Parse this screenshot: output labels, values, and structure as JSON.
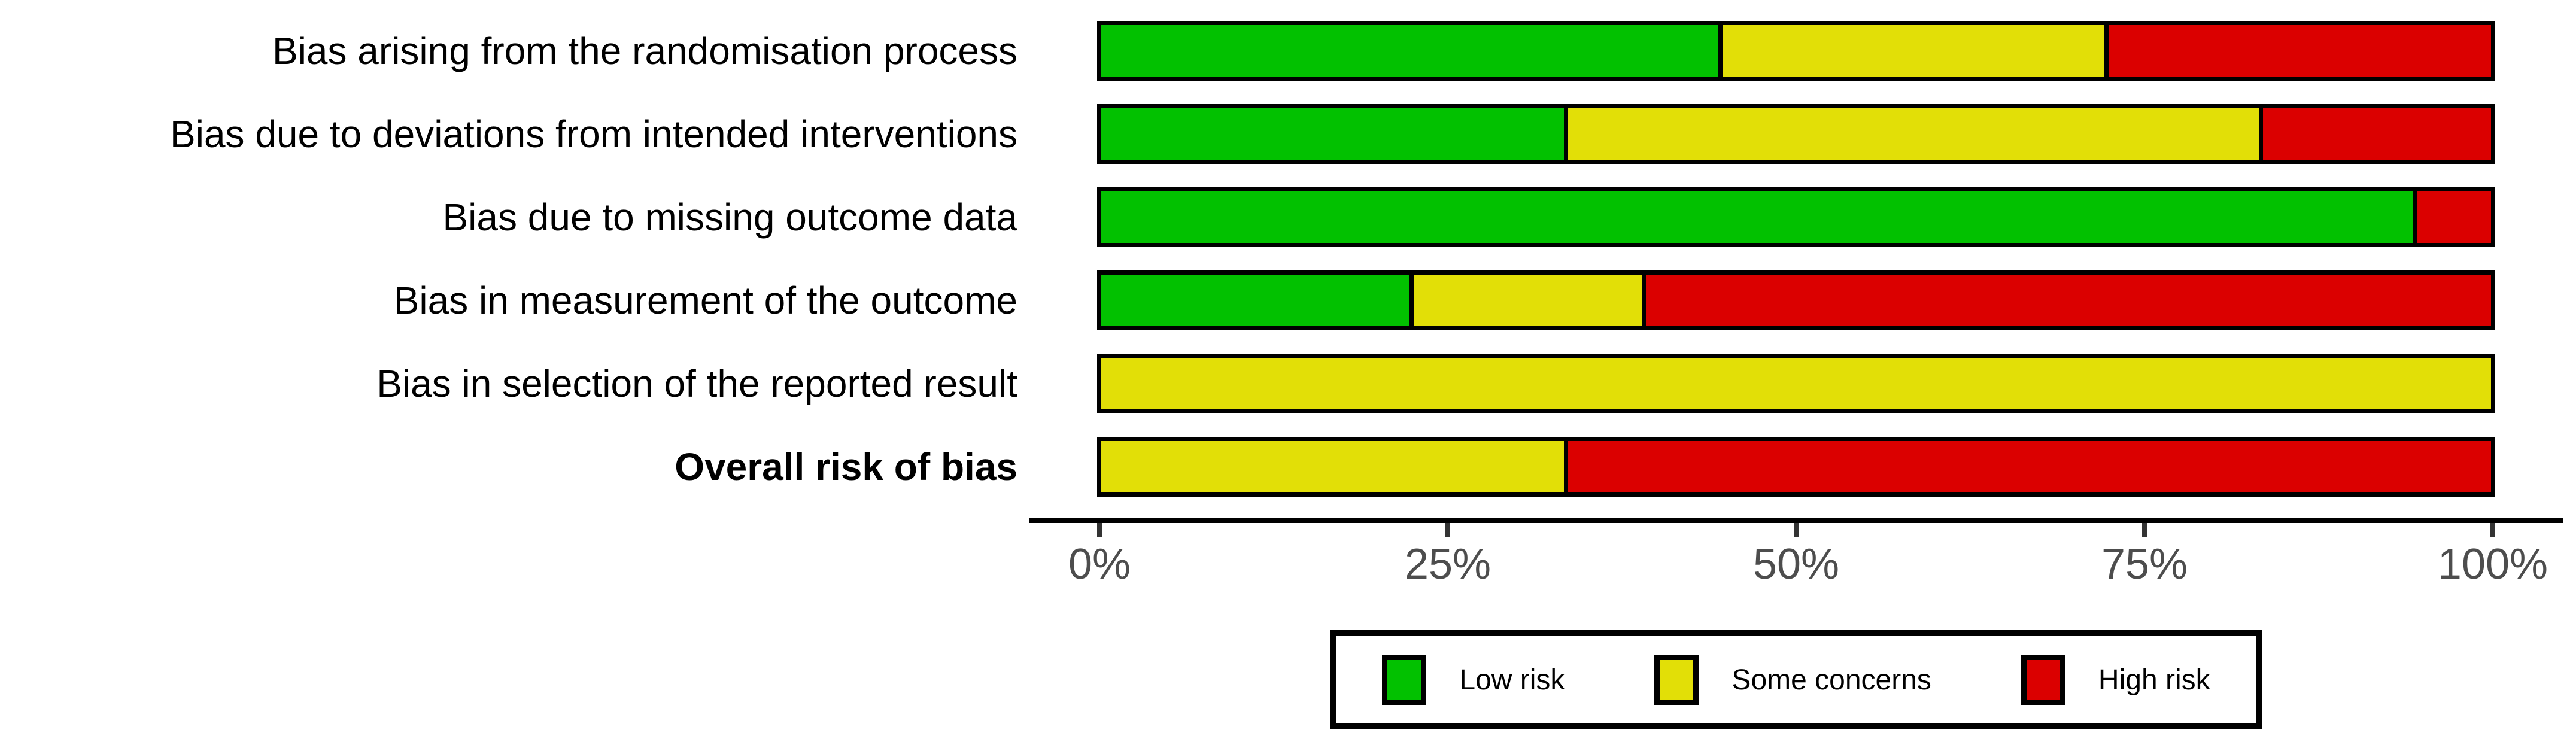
{
  "chart_data": {
    "type": "bar",
    "orientation": "horizontal_stacked",
    "title": "",
    "xlabel": "",
    "ylabel": "",
    "unit": "percent of studies",
    "categories": [
      {
        "label": "Bias arising from the randomisation process",
        "bold": false
      },
      {
        "label": "Bias due to deviations from intended interventions",
        "bold": false
      },
      {
        "label": "Bias due to missing outcome data",
        "bold": false
      },
      {
        "label": "Bias in measurement of the outcome",
        "bold": false
      },
      {
        "label": "Bias in selection of the reported result",
        "bold": false
      },
      {
        "label": "Overall risk of bias",
        "bold": true
      }
    ],
    "series": [
      {
        "name": "Low risk",
        "color": "#02C100",
        "values": [
          44.4,
          33.3,
          94.4,
          22.2,
          0,
          0
        ]
      },
      {
        "name": "Some concerns",
        "color": "#E2DF07",
        "values": [
          27.8,
          50.0,
          0,
          16.7,
          100,
          33.3
        ]
      },
      {
        "name": "High risk",
        "color": "#DB0000",
        "values": [
          27.8,
          16.7,
          5.6,
          61.1,
          0,
          66.7
        ]
      }
    ],
    "xlim": [
      0,
      100
    ],
    "x_tick_labels": [
      "0%",
      "25%",
      "50%",
      "75%",
      "100%"
    ],
    "x_tick_values": [
      0,
      25,
      50,
      75,
      100
    ],
    "grid": false,
    "legend_position": "bottom",
    "legend_items": [
      "Low risk",
      "Some concerns",
      "High risk"
    ]
  },
  "colors": {
    "low_risk": "#02C100",
    "some_concerns": "#E2DF07",
    "high_risk": "#DB0000",
    "axis_line": "#000000",
    "tick_mark": "#333333",
    "tick_label": "#4d4d4d",
    "bar_border": "#000000",
    "background": "#ffffff"
  }
}
